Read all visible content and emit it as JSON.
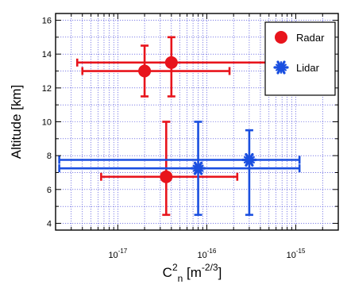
{
  "chart_data": {
    "type": "scatter",
    "xscale": "log",
    "xlim": [
      2e-18,
      3e-15
    ],
    "ylim": [
      3.6,
      16.4
    ],
    "x_ticks": [
      1e-17,
      1e-16,
      1e-15
    ],
    "x_tick_labels": [
      {
        "mant": "10",
        "exp": "-17"
      },
      {
        "mant": "10",
        "exp": "-16"
      },
      {
        "mant": "10",
        "exp": "-15"
      }
    ],
    "y_ticks": [
      4,
      6,
      8,
      10,
      12,
      14,
      16
    ],
    "y_tick_labels": [
      "4",
      "6",
      "8",
      "10",
      "12",
      "14",
      "16"
    ],
    "ylabel": "Altitude [km]",
    "xlabel": {
      "base": "C",
      "sub": "n",
      "sup": "2",
      "unit_open": " [m",
      "unit_sup": "-2/3",
      "unit_close": "]"
    },
    "grid": true,
    "legend_position": "top-right",
    "series": [
      {
        "name": "Radar",
        "color": "#e8141c",
        "marker": "circle",
        "points": [
          {
            "x": 2e-17,
            "y": 13.0,
            "xerr": [
              4e-18,
              1.8e-16
            ],
            "yerr": [
              11.5,
              14.5
            ]
          },
          {
            "x": 4e-17,
            "y": 13.5,
            "xerr": [
              3.5e-18,
              5e-16
            ],
            "yerr": [
              11.5,
              15.0
            ]
          },
          {
            "x": 3.5e-17,
            "y": 6.75,
            "xerr": [
              6.5e-18,
              2.2e-16
            ],
            "yerr": [
              4.5,
              10.0
            ]
          }
        ]
      },
      {
        "name": "Lidar",
        "color": "#1a4fe0",
        "marker": "asterisk",
        "points": [
          {
            "x": 8e-17,
            "y": 7.25,
            "xerr": [
              2.2e-18,
              1.1e-15
            ],
            "yerr": [
              4.5,
              10.0
            ]
          },
          {
            "x": 3e-16,
            "y": 7.75,
            "xerr": [
              2.2e-18,
              1.1e-15
            ],
            "yerr": [
              4.5,
              9.5
            ]
          }
        ]
      }
    ]
  }
}
